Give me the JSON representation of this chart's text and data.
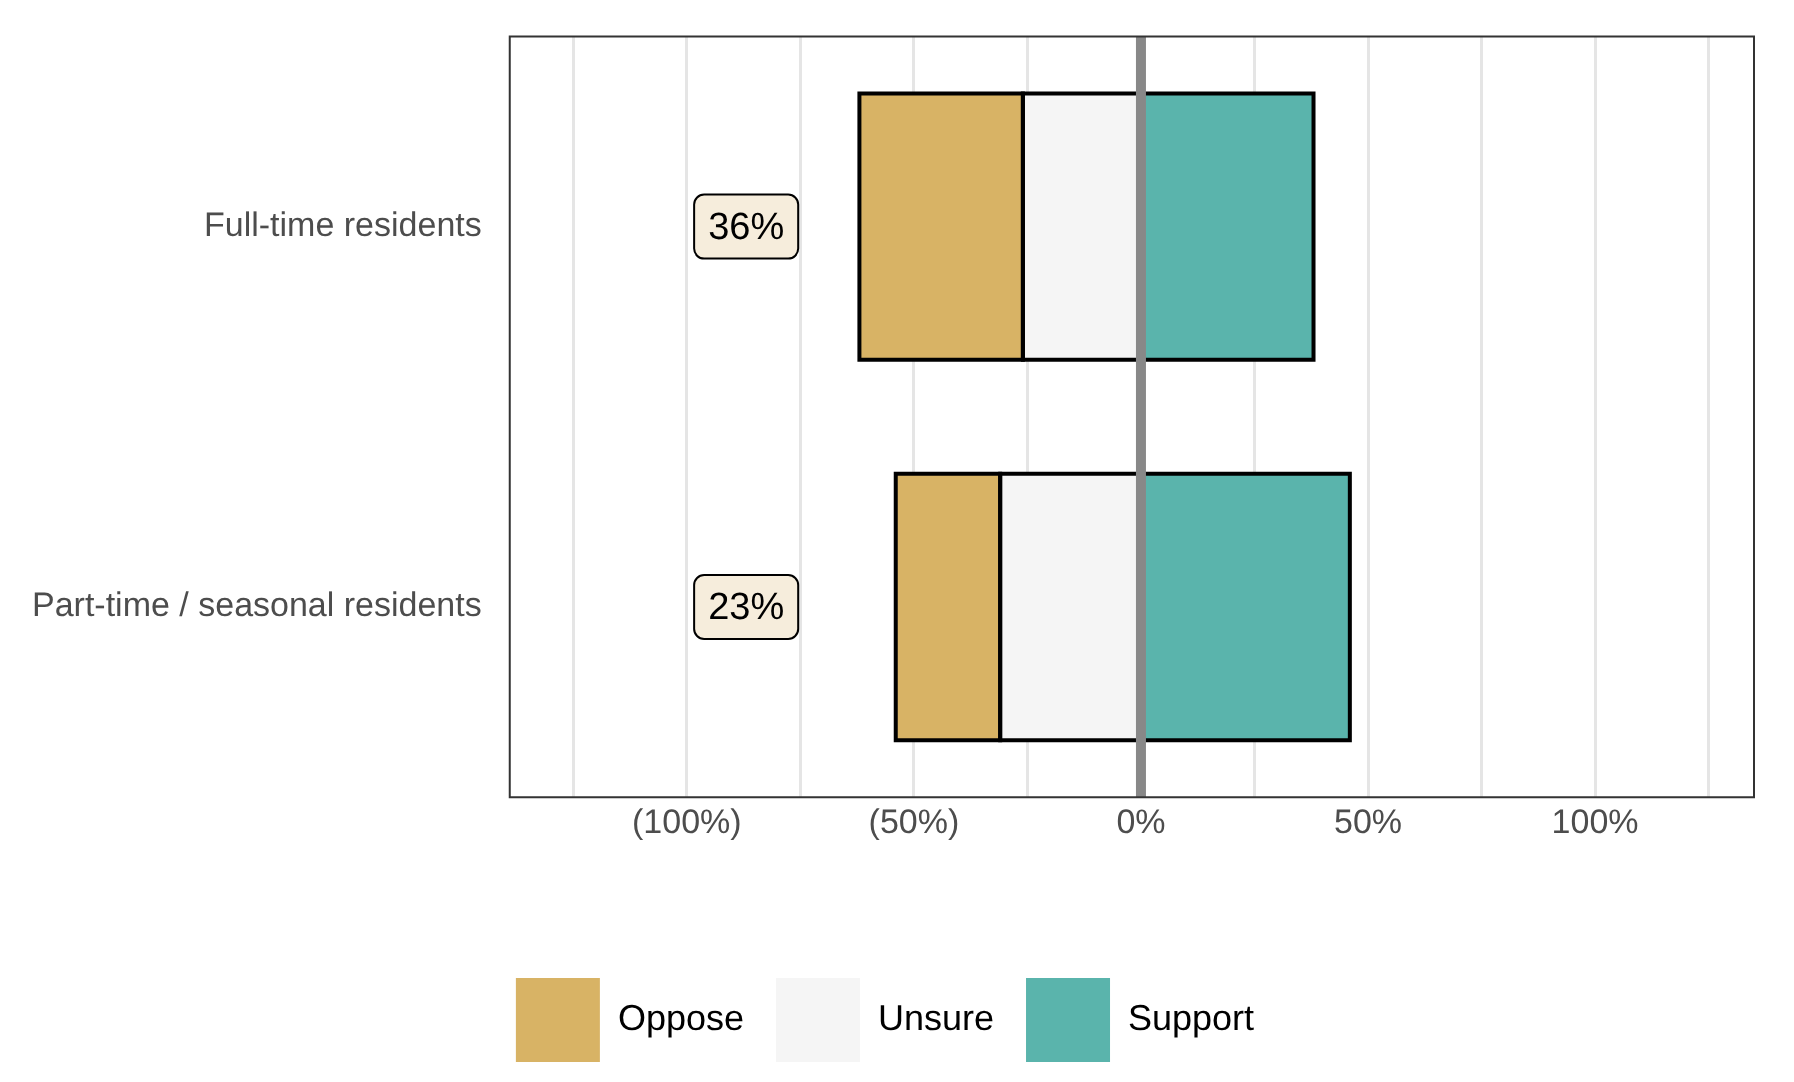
{
  "chart_data": {
    "type": "bar",
    "orientation": "horizontal",
    "categories": [
      "Full-time residents",
      "Part-time / seasonal residents"
    ],
    "series": [
      {
        "name": "Oppose",
        "color": "#d8b365",
        "base": [
          -62,
          -54
        ],
        "values": [
          36,
          23
        ]
      },
      {
        "name": "Unsure",
        "color": "#f5f5f5",
        "base": [
          -26,
          -31
        ],
        "values": [
          26,
          31
        ]
      },
      {
        "name": "Support",
        "color": "#5ab4ac",
        "base": [
          0,
          0
        ],
        "values": [
          38,
          46
        ]
      }
    ],
    "xlim": [
      -139,
      135
    ],
    "xticks": [
      {
        "value": -125,
        "label": null
      },
      {
        "value": -100,
        "label": "(100%)"
      },
      {
        "value": -75,
        "label": null
      },
      {
        "value": -50,
        "label": "(50%)"
      },
      {
        "value": -25,
        "label": null
      },
      {
        "value": 0,
        "label": "0%"
      },
      {
        "value": 25,
        "label": null
      },
      {
        "value": 50,
        "label": "50%"
      },
      {
        "value": 75,
        "label": null
      },
      {
        "value": 100,
        "label": "100%"
      },
      {
        "value": 125,
        "label": null
      }
    ],
    "ref_lines": [
      {
        "axis": "x",
        "value": 0,
        "color": "#888888"
      }
    ],
    "annotations": [
      "36%",
      "23%"
    ],
    "grid": "x",
    "legend": "bottom"
  }
}
